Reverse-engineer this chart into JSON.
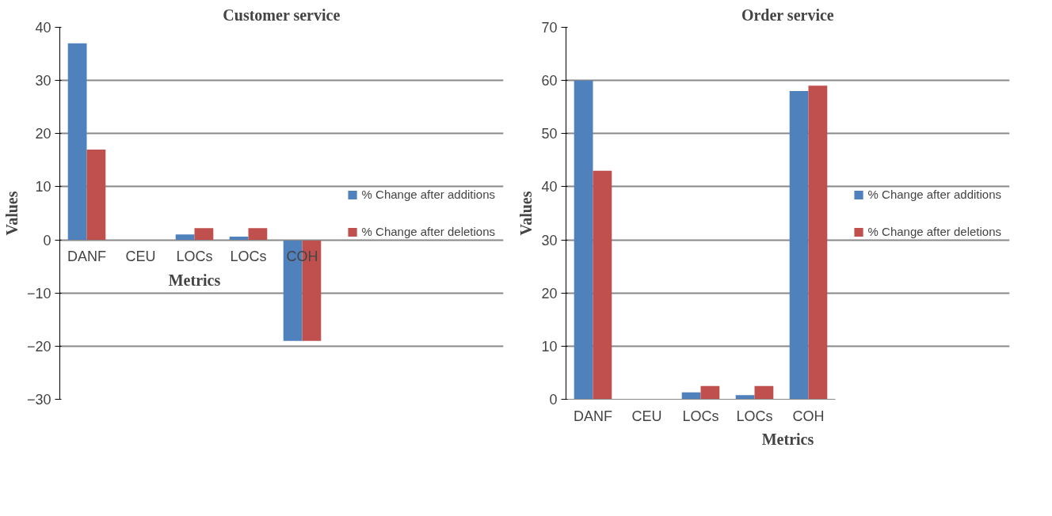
{
  "chart_data": [
    {
      "type": "bar",
      "title": "Customer service",
      "xlabel": "Metrics",
      "ylabel": "Values",
      "categories": [
        "DANF",
        "CEU",
        "LOCs",
        "LOCs",
        "COH"
      ],
      "series": [
        {
          "name": "% Change after additions",
          "color": "#4f81bd",
          "values": [
            37,
            0,
            1,
            0.6,
            -19
          ]
        },
        {
          "name": "% Change after deletions",
          "color": "#c0504d",
          "values": [
            17,
            0,
            2.2,
            2.2,
            -19
          ]
        }
      ],
      "ylim": [
        -30,
        40
      ],
      "yticks": [
        -30,
        -20,
        -10,
        0,
        10,
        20,
        30,
        40
      ],
      "grid": "y",
      "legend": "right"
    },
    {
      "type": "bar",
      "title": "Order service",
      "xlabel": "Metrics",
      "ylabel": "Values",
      "categories": [
        "DANF",
        "CEU",
        "LOCs",
        "LOCs",
        "COH"
      ],
      "series": [
        {
          "name": "% Change after additions",
          "color": "#4f81bd",
          "values": [
            60,
            0,
            1.3,
            0.8,
            58
          ]
        },
        {
          "name": "% Change after deletions",
          "color": "#c0504d",
          "values": [
            43,
            0,
            2.5,
            2.5,
            59
          ]
        }
      ],
      "ylim": [
        0,
        70
      ],
      "yticks": [
        0,
        10,
        20,
        30,
        40,
        50,
        60,
        70
      ],
      "grid": "y",
      "legend": "right"
    }
  ]
}
